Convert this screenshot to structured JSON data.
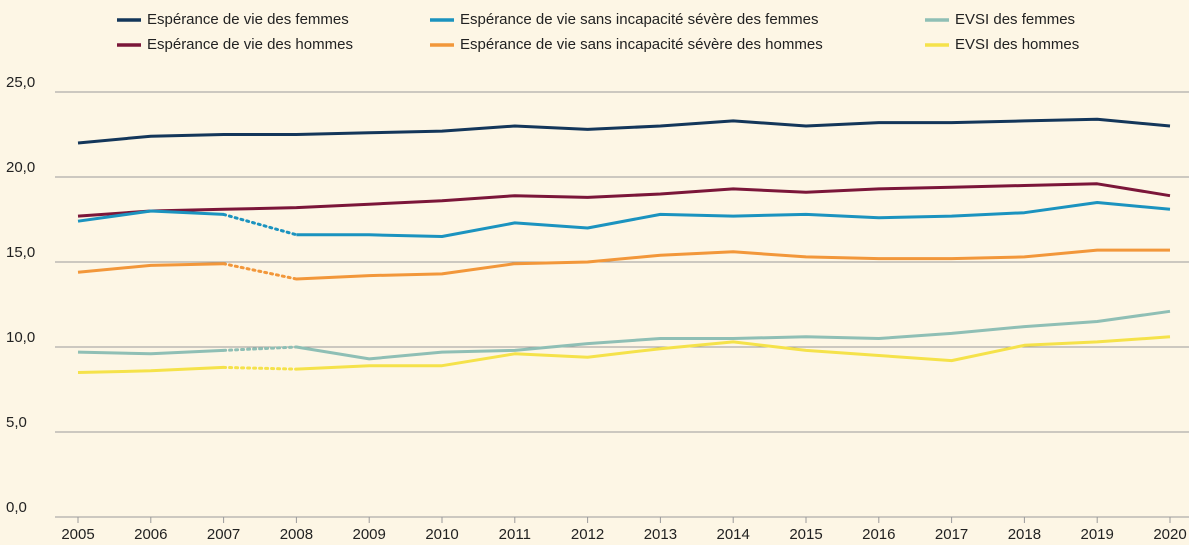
{
  "chart_data": {
    "type": "line",
    "categories": [
      "2005",
      "2006",
      "2007",
      "2008",
      "2009",
      "2010",
      "2011",
      "2012",
      "2013",
      "2014",
      "2015",
      "2016",
      "2017",
      "2018",
      "2019",
      "2020"
    ],
    "series": [
      {
        "name": "Espérance de vie des femmes",
        "color": "#13365a",
        "values": [
          22.0,
          22.4,
          22.5,
          22.5,
          22.6,
          22.7,
          23.0,
          22.8,
          23.0,
          23.3,
          23.0,
          23.2,
          23.2,
          23.3,
          23.4,
          23.0
        ]
      },
      {
        "name": "Espérance de vie des hommes",
        "color": "#7b1639",
        "values": [
          17.7,
          18.0,
          18.1,
          18.2,
          18.4,
          18.6,
          18.9,
          18.8,
          19.0,
          19.3,
          19.1,
          19.3,
          19.4,
          19.5,
          19.6,
          18.9
        ]
      },
      {
        "name": "Espérance de vie sans incapacité sévère des femmes",
        "color": "#1b93bf",
        "values": [
          17.4,
          18.0,
          17.8,
          16.6,
          16.6,
          16.5,
          17.3,
          17.0,
          17.8,
          17.7,
          17.8,
          17.6,
          17.7,
          17.9,
          18.5,
          18.1
        ],
        "dotted_segment": [
          "2007",
          "2008"
        ]
      },
      {
        "name": "Espérance de vie sans incapacité sévère des hommes",
        "color": "#f2973a",
        "values": [
          14.4,
          14.8,
          14.9,
          14.0,
          14.2,
          14.3,
          14.9,
          15.0,
          15.4,
          15.6,
          15.3,
          15.2,
          15.2,
          15.3,
          15.7,
          15.7
        ],
        "dotted_segment": [
          "2007",
          "2008"
        ]
      },
      {
        "name": "EVSI des femmes",
        "color": "#8fbfb5",
        "values": [
          9.7,
          9.6,
          9.8,
          10.0,
          9.3,
          9.7,
          9.8,
          10.2,
          10.5,
          10.5,
          10.6,
          10.5,
          10.8,
          11.2,
          11.5,
          12.1
        ],
        "dotted_segment": [
          "2007",
          "2008"
        ]
      },
      {
        "name": "EVSI des hommes",
        "color": "#f5e24a",
        "values": [
          8.5,
          8.6,
          8.8,
          8.7,
          8.9,
          8.9,
          9.6,
          9.4,
          9.9,
          10.3,
          9.8,
          9.5,
          9.2,
          10.1,
          10.3,
          10.6
        ],
        "dotted_segment": [
          "2007",
          "2008"
        ]
      }
    ],
    "ylim": [
      0,
      25
    ],
    "yticks": [
      {
        "value": 0,
        "label": "0,0"
      },
      {
        "value": 5,
        "label": "5,0"
      },
      {
        "value": 10,
        "label": "10,0"
      },
      {
        "value": 15,
        "label": "15,0"
      },
      {
        "value": 20,
        "label": "20,0"
      },
      {
        "value": 25,
        "label": "25,0"
      }
    ],
    "grid": true,
    "legend": "top"
  }
}
